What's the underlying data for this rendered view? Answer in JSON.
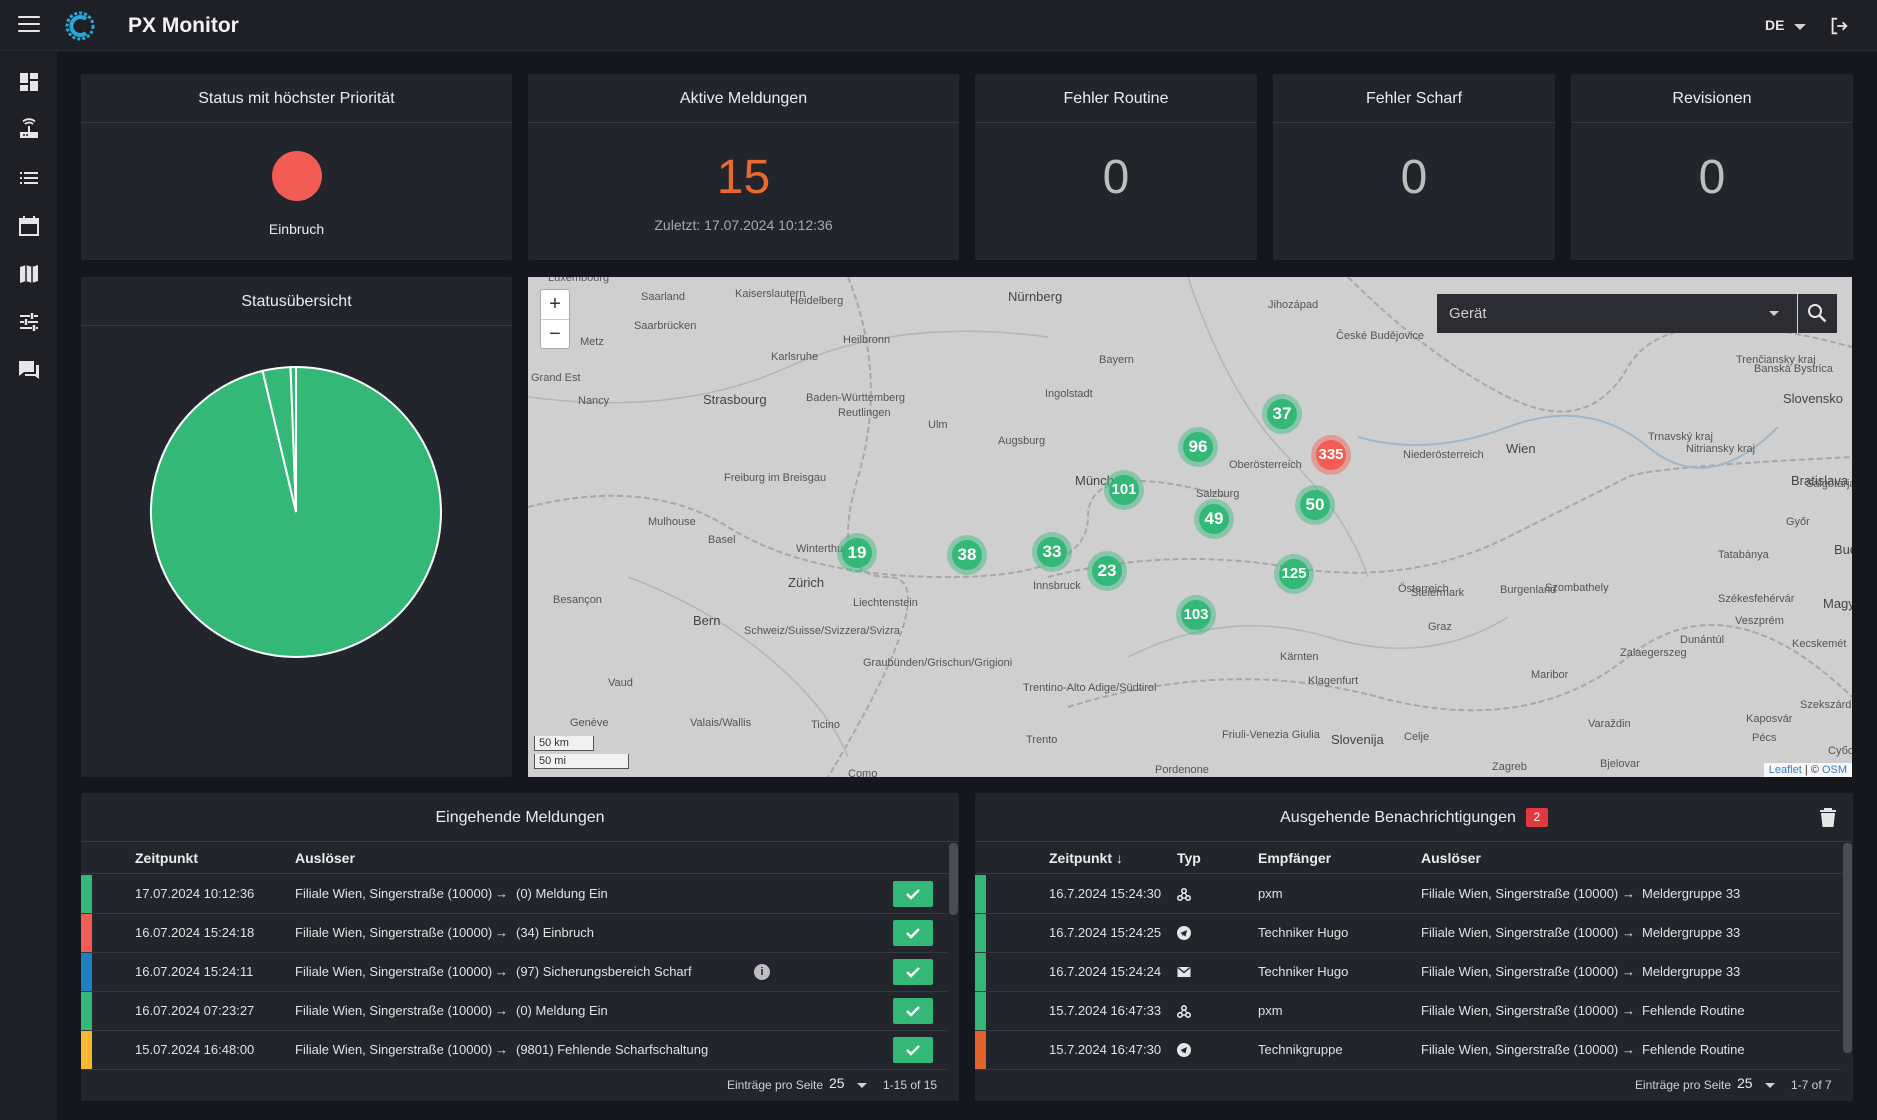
{
  "app": {
    "title": "PX Monitor",
    "language": "DE"
  },
  "sidebar": {
    "items": [
      "dashboard-icon",
      "router-icon",
      "list-icon",
      "calendar-icon",
      "map-icon",
      "sliders-icon",
      "chat-icon"
    ]
  },
  "cards": {
    "status": {
      "title": "Status mit höchster Priorität",
      "label": "Einbruch",
      "color": "#f25c54"
    },
    "active": {
      "title": "Aktive Meldungen",
      "value": "15",
      "sub": "Zuletzt: 17.07.2024 10:12:36",
      "color": "#ea6a2d"
    },
    "err_routine": {
      "title": "Fehler Routine",
      "value": "0"
    },
    "err_armed": {
      "title": "Fehler Scharf",
      "value": "0"
    },
    "revisions": {
      "title": "Revisionen",
      "value": "0"
    }
  },
  "overview": {
    "title": "Statusübersicht",
    "chart_data": {
      "type": "pie",
      "values": [
        96.3,
        3.1,
        0.6
      ],
      "colors": [
        "#33b878",
        "#33b878",
        "#33b878"
      ]
    }
  },
  "map": {
    "device_placeholder": "Gerät",
    "zoom_in": "+",
    "zoom_out": "−",
    "scale_km": "50 km",
    "scale_mi": "50 mi",
    "attribution_leaflet": "Leaflet",
    "attribution_sep": " | © ",
    "attribution_osm": "OSM",
    "clusters": [
      {
        "count": "37",
        "color": "green"
      },
      {
        "count": "96",
        "color": "green"
      },
      {
        "count": "335",
        "color": "red"
      },
      {
        "count": "101",
        "color": "green"
      },
      {
        "count": "49",
        "color": "green"
      },
      {
        "count": "50",
        "color": "green"
      },
      {
        "count": "19",
        "color": "green"
      },
      {
        "count": "38",
        "color": "green"
      },
      {
        "count": "33",
        "color": "green"
      },
      {
        "count": "23",
        "color": "green"
      },
      {
        "count": "125",
        "color": "green"
      },
      {
        "count": "103",
        "color": "green"
      }
    ],
    "labels": [
      "Luxembourg",
      "Saarland",
      "Kaiserslautern",
      "Heidelberg",
      "Nürnberg",
      "Jihozápad",
      "České Budějovice",
      "Trenčiansky kraj",
      "Banská Bystrica",
      "Slovensko",
      "Saarbrücken",
      "Metz",
      "Heilbronn",
      "Karlsruhe",
      "Bayern",
      "Grand Est",
      "Nancy",
      "Strasbourg",
      "Baden-Württemberg",
      "Reutlingen",
      "Ingolstadt",
      "Ulm",
      "Augsburg",
      "Niederösterreich",
      "Trnavský kraj",
      "Nitriansky kraj",
      "Bratislava",
      "Oberösterreich",
      "Wien",
      "München",
      "Salzburg",
      "Freiburg im Breisgau",
      "Mulhouse",
      "Basel",
      "Winterthur",
      "Zürich",
      "Liechtenstein",
      "Innsbruck",
      "Steiermark",
      "Burgenland",
      "Győr",
      "Tatabánya",
      "Budapest",
      "Salgótarján",
      "Besançon",
      "Bern",
      "Schweiz/Suisse/Svizzera/Svizra",
      "Graubünden/Grischun/Grigioni",
      "Szombathely",
      "Székesfehérvár",
      "Veszprém",
      "Magyarország",
      "Kecskemét",
      "Dunántúl",
      "Zalaegerszeg",
      "Maribor",
      "Kärnten",
      "Klagenfurt",
      "Vaud",
      "Genève",
      "Valais/Wallis",
      "Ticino",
      "Trentino-Alto Adige/Südtirol",
      "Trento",
      "Friuli-Venezia Giulia",
      "Pordenone",
      "Slovenija",
      "Celje",
      "Zagreb",
      "Bjelovar",
      "Varaždin",
      "Kaposvár",
      "Pécs",
      "Szekszárd",
      "Суботица",
      "Como",
      "Graz",
      "Österreich"
    ]
  },
  "incoming": {
    "title": "Eingehende Meldungen",
    "columns": [
      "Zeitpunkt",
      "Auslöser"
    ],
    "rows": [
      {
        "time": "17.07.2024 10:12:36",
        "source": "Filiale Wien, Singerstraße (10000)",
        "arrow": "→",
        "event": "(0) Meldung Ein",
        "strip": "#33b878",
        "info": false
      },
      {
        "time": "16.07.2024 15:24:18",
        "source": "Filiale Wien, Singerstraße (10000)",
        "arrow": "→",
        "event": "(34) Einbruch",
        "strip": "#f25c54",
        "info": false
      },
      {
        "time": "16.07.2024 15:24:11",
        "source": "Filiale Wien, Singerstraße (10000)",
        "arrow": "→",
        "event": "(97) Sicherungsbereich Scharf",
        "strip": "#1f7fc3",
        "info": true
      },
      {
        "time": "16.07.2024 07:23:27",
        "source": "Filiale Wien, Singerstraße (10000)",
        "arrow": "→",
        "event": "(0) Meldung Ein",
        "strip": "#33b878",
        "info": false
      },
      {
        "time": "15.07.2024 16:48:00",
        "source": "Filiale Wien, Singerstraße (10000)",
        "arrow": "→",
        "event": "(9801) Fehlende Scharfschaltung",
        "strip": "#f5b82e",
        "info": false
      }
    ],
    "info_glyph": "i",
    "footer": {
      "per_page_label": "Einträge pro Seite",
      "per_page": "25",
      "range": "1-15 of 15"
    }
  },
  "outgoing": {
    "title": "Ausgehende Benachrichtigungen",
    "badge": "2",
    "columns": [
      "Zeitpunkt",
      "Typ",
      "Empfänger",
      "Auslöser"
    ],
    "sort_arrow": "↓",
    "rows": [
      {
        "time": "16.7.2024 15:24:30",
        "type": "webhook-icon",
        "recipient": "pxm",
        "source": "Filiale Wien, Singerstraße (10000)",
        "arrow": "→",
        "target": "Meldergruppe 33",
        "strip": "#33b878"
      },
      {
        "time": "16.7.2024 15:24:25",
        "type": "telegram-icon",
        "recipient": "Techniker Hugo",
        "source": "Filiale Wien, Singerstraße (10000)",
        "arrow": "→",
        "target": "Meldergruppe 33",
        "strip": "#33b878"
      },
      {
        "time": "16.7.2024 15:24:24",
        "type": "mail-icon",
        "recipient": "Techniker Hugo",
        "source": "Filiale Wien, Singerstraße (10000)",
        "arrow": "→",
        "target": "Meldergruppe 33",
        "strip": "#33b878"
      },
      {
        "time": "15.7.2024 16:47:33",
        "type": "webhook-icon",
        "recipient": "pxm",
        "source": "Filiale Wien, Singerstraße (10000)",
        "arrow": "→",
        "target": "Fehlende Routine",
        "strip": "#33b878"
      },
      {
        "time": "15.7.2024 16:47:30",
        "type": "telegram-icon",
        "recipient": "Technikgruppe",
        "source": "Filiale Wien, Singerstraße (10000)",
        "arrow": "→",
        "target": "Fehlende Routine",
        "strip": "#e2622c"
      }
    ],
    "footer": {
      "per_page_label": "Einträge pro Seite",
      "per_page": "25",
      "range": "1-7 of 7"
    }
  }
}
